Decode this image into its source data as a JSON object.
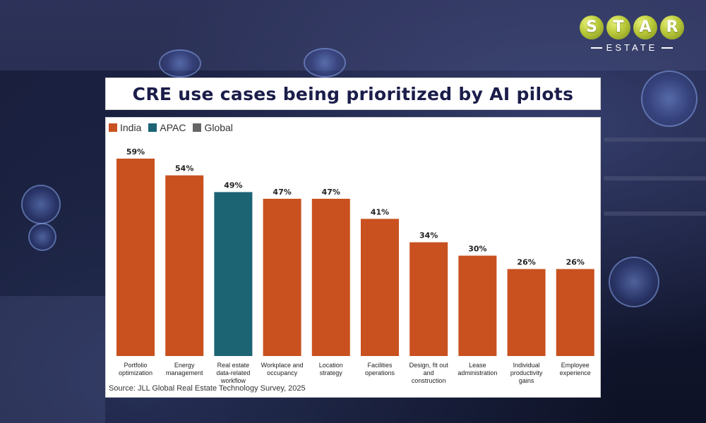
{
  "logo": {
    "letters": [
      "S",
      "T",
      "A",
      "R"
    ],
    "subtitle": "ESTATE"
  },
  "colors": {
    "india": "#c9511f",
    "apac": "#1c6373",
    "global": "#666666",
    "title": "#1b1d4a"
  },
  "chart_data": {
    "type": "bar",
    "title": "CRE use cases being prioritized by AI pilots",
    "legend": [
      {
        "name": "India",
        "color": "#c9511f"
      },
      {
        "name": "APAC",
        "color": "#1c6373"
      },
      {
        "name": "Global",
        "color": "#666666"
      }
    ],
    "categories": [
      "Portfolio optimization",
      "Energy management",
      "Real estate data-related workflow",
      "Workplace and occupancy",
      "Location strategy",
      "Facilities operations",
      "Design, fit out and construction",
      "Lease administration",
      "Individual productivity gains",
      "Employee experience"
    ],
    "category_lines": [
      [
        "Portfolio",
        "optimization"
      ],
      [
        "Energy",
        "management"
      ],
      [
        "Real estate",
        "data-related",
        "workflow"
      ],
      [
        "Workplace and",
        "occupancy"
      ],
      [
        "Location",
        "strategy"
      ],
      [
        "Facilities",
        "operations"
      ],
      [
        "Design, fit out",
        "and",
        "construction"
      ],
      [
        "Lease",
        "administration"
      ],
      [
        "Individual",
        "productivity",
        "gains"
      ],
      [
        "Employee",
        "experience"
      ]
    ],
    "values": [
      59,
      54,
      49,
      47,
      47,
      41,
      34,
      30,
      26,
      26
    ],
    "value_labels": [
      "59%",
      "54%",
      "49%",
      "47%",
      "47%",
      "41%",
      "34%",
      "30%",
      "26%",
      "26%"
    ],
    "series_of_bar": [
      "India",
      "India",
      "APAC",
      "India",
      "India",
      "India",
      "India",
      "India",
      "India",
      "India"
    ],
    "ylim": [
      0,
      59
    ],
    "xlabel": "",
    "ylabel": "",
    "legend_position": "top-left",
    "source": "Source: JLL Global Real Estate Technology Survey, 2025"
  }
}
